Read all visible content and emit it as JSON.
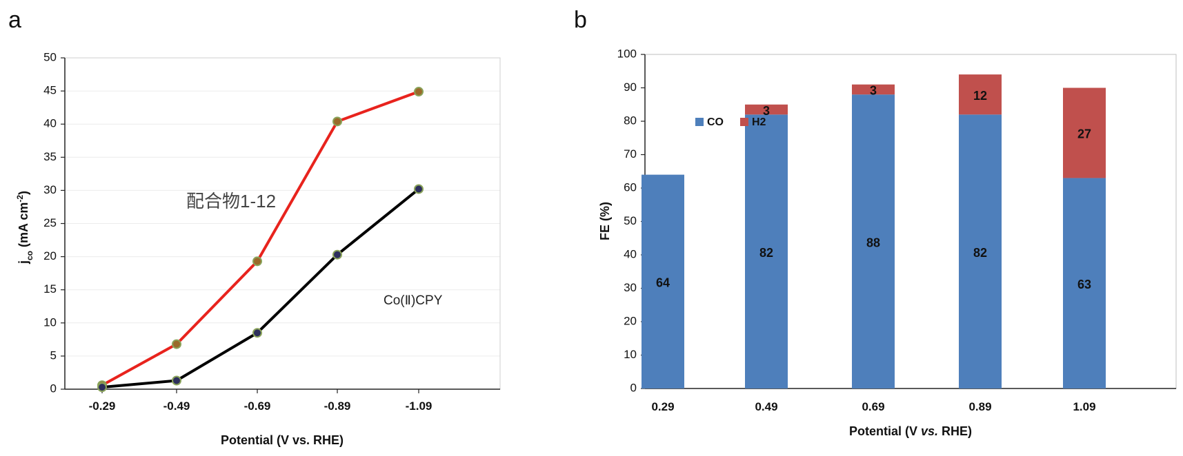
{
  "chart_data": [
    {
      "panel": "a",
      "type": "line",
      "xlabel": "Potential (V vs. RHE)",
      "ylabel": "jco (mA cm-2)",
      "ylabel_main": "j",
      "ylabel_sub": "co",
      "ylabel_rest": " (mA cm",
      "ylabel_sup": "-2",
      "ylabel_close": ")",
      "categories": [
        "-0.29",
        "-0.49",
        "-0.69",
        "-0.89",
        "-1.09"
      ],
      "ylim": [
        0,
        50
      ],
      "yticks": [
        0,
        5,
        10,
        15,
        20,
        25,
        30,
        35,
        40,
        45,
        50
      ],
      "series": [
        {
          "name": "配合物1-12",
          "color": "#e8231d",
          "marker_fill": "#9a6a2a",
          "values": [
            0.6,
            6.8,
            19.3,
            40.4,
            44.9
          ]
        },
        {
          "name": "Co(Ⅱ)CPY",
          "color": "#000000",
          "marker_fill": "#2d2f5c",
          "values": [
            0.3,
            1.3,
            8.5,
            20.3,
            30.2
          ]
        }
      ],
      "annotations": [
        "配合物1-12",
        "Co(Ⅱ)CPY"
      ]
    },
    {
      "panel": "b",
      "type": "bar",
      "stacked": true,
      "xlabel_pre": "Potential (V ",
      "xlabel_italic": "vs.",
      "xlabel_post": " RHE)",
      "ylabel": "FE (%)",
      "categories": [
        "0.29",
        "0.49",
        "0.69",
        "0.89",
        "1.09"
      ],
      "ylim": [
        0,
        100
      ],
      "yticks": [
        0,
        10,
        20,
        30,
        40,
        50,
        60,
        70,
        80,
        90,
        100
      ],
      "legend_position": "upper-left",
      "series": [
        {
          "name": "CO",
          "color": "#4e7fbb",
          "values": [
            64,
            82,
            88,
            82,
            63
          ]
        },
        {
          "name": "H2",
          "color": "#c0504d",
          "values": [
            0,
            3,
            3,
            12,
            27
          ]
        }
      ]
    }
  ]
}
